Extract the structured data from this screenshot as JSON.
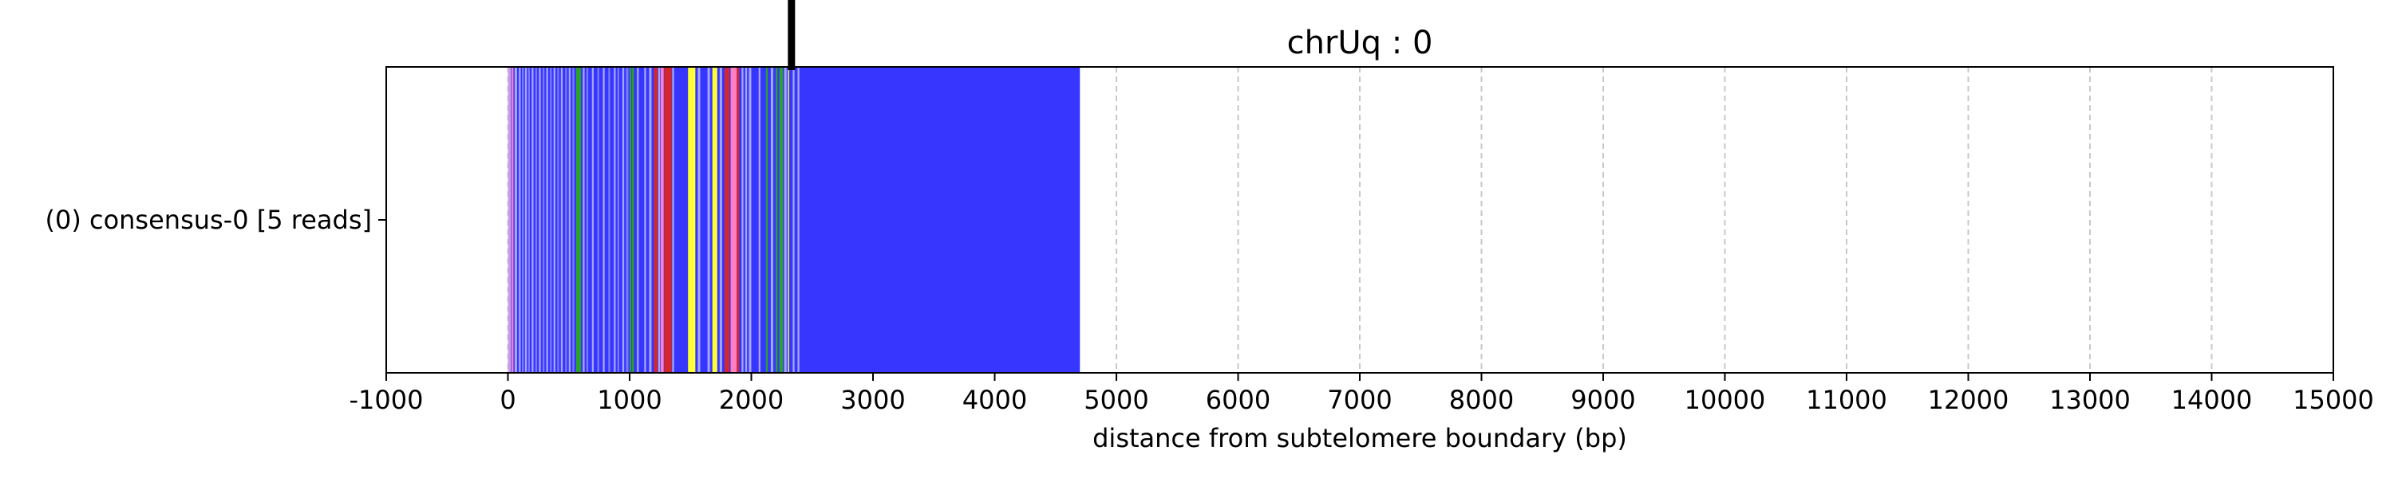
{
  "chart_data": {
    "type": "bar",
    "title": "chrUq : 0",
    "xlabel": "distance from subtelomere boundary (bp)",
    "ylabel": "",
    "xlim": [
      -1000,
      15000
    ],
    "xticks": [
      "-1000",
      "0",
      "1000",
      "2000",
      "3000",
      "4000",
      "5000",
      "6000",
      "7000",
      "8000",
      "9000",
      "10000",
      "11000",
      "12000",
      "13000",
      "14000",
      "15000"
    ],
    "grid": "vertical dashed at major ticks",
    "marker_x": 2330,
    "tracks": [
      {
        "label": "(0) consensus-0 [5 reads]",
        "base_color": "#3636ff",
        "base_start": 0,
        "base_end": 4700,
        "segments": [
          {
            "start": 0,
            "end": 25,
            "color": "#c89ee8"
          },
          {
            "start": 30,
            "end": 45,
            "color": "#ff7fc0"
          },
          {
            "start": 55,
            "end": 75,
            "color": "#a6a6ff"
          },
          {
            "start": 90,
            "end": 105,
            "color": "#a6a6ff"
          },
          {
            "start": 115,
            "end": 130,
            "color": "#7a7aff"
          },
          {
            "start": 140,
            "end": 155,
            "color": "#a6a6ff"
          },
          {
            "start": 165,
            "end": 180,
            "color": "#7a7aff"
          },
          {
            "start": 195,
            "end": 210,
            "color": "#a6a6ff"
          },
          {
            "start": 225,
            "end": 240,
            "color": "#7a7aff"
          },
          {
            "start": 255,
            "end": 270,
            "color": "#a6a6ff"
          },
          {
            "start": 285,
            "end": 300,
            "color": "#7a7aff"
          },
          {
            "start": 315,
            "end": 330,
            "color": "#a6a6ff"
          },
          {
            "start": 345,
            "end": 360,
            "color": "#7a7aff"
          },
          {
            "start": 375,
            "end": 390,
            "color": "#a6a6ff"
          },
          {
            "start": 405,
            "end": 420,
            "color": "#7a7aff"
          },
          {
            "start": 435,
            "end": 450,
            "color": "#a6a6ff"
          },
          {
            "start": 470,
            "end": 485,
            "color": "#7a7aff"
          },
          {
            "start": 500,
            "end": 515,
            "color": "#a6a6ff"
          },
          {
            "start": 530,
            "end": 545,
            "color": "#7a7aff"
          },
          {
            "start": 560,
            "end": 600,
            "color": "#2ca02c"
          },
          {
            "start": 615,
            "end": 630,
            "color": "#a6a6ff"
          },
          {
            "start": 645,
            "end": 660,
            "color": "#7a7aff"
          },
          {
            "start": 690,
            "end": 705,
            "color": "#a6a6ff"
          },
          {
            "start": 735,
            "end": 750,
            "color": "#7a7aff"
          },
          {
            "start": 780,
            "end": 795,
            "color": "#a6a6ff"
          },
          {
            "start": 825,
            "end": 840,
            "color": "#7a7aff"
          },
          {
            "start": 870,
            "end": 885,
            "color": "#a6a6ff"
          },
          {
            "start": 900,
            "end": 915,
            "color": "#7a7aff"
          },
          {
            "start": 940,
            "end": 955,
            "color": "#a6a6ff"
          },
          {
            "start": 970,
            "end": 990,
            "color": "#7a7aff"
          },
          {
            "start": 1000,
            "end": 1015,
            "color": "#2ca02c"
          },
          {
            "start": 1020,
            "end": 1035,
            "color": "#2ca02c"
          },
          {
            "start": 1060,
            "end": 1075,
            "color": "#a6a6ff"
          },
          {
            "start": 1120,
            "end": 1135,
            "color": "#a6a6ff"
          },
          {
            "start": 1160,
            "end": 1180,
            "color": "#a6a6ff"
          },
          {
            "start": 1200,
            "end": 1230,
            "color": "#d62728"
          },
          {
            "start": 1235,
            "end": 1250,
            "color": "#a6a6ff"
          },
          {
            "start": 1255,
            "end": 1280,
            "color": "#ff7fc0"
          },
          {
            "start": 1285,
            "end": 1345,
            "color": "#d62728"
          },
          {
            "start": 1350,
            "end": 1365,
            "color": "#a6a6ff"
          },
          {
            "start": 1480,
            "end": 1540,
            "color": "#ffff33"
          },
          {
            "start": 1560,
            "end": 1580,
            "color": "#a6a6ff"
          },
          {
            "start": 1640,
            "end": 1660,
            "color": "#a6a6ff"
          },
          {
            "start": 1680,
            "end": 1720,
            "color": "#ffff33"
          },
          {
            "start": 1740,
            "end": 1760,
            "color": "#a6a6ff"
          },
          {
            "start": 1780,
            "end": 1820,
            "color": "#d62728"
          },
          {
            "start": 1830,
            "end": 1880,
            "color": "#ff7fc0"
          },
          {
            "start": 1880,
            "end": 1900,
            "color": "#d62728"
          },
          {
            "start": 1920,
            "end": 1935,
            "color": "#a6a6ff"
          },
          {
            "start": 1950,
            "end": 1965,
            "color": "#a6a6ff"
          },
          {
            "start": 1980,
            "end": 2000,
            "color": "#a6a6ff"
          },
          {
            "start": 2060,
            "end": 2075,
            "color": "#a6a6ff"
          },
          {
            "start": 2120,
            "end": 2135,
            "color": "#2ca02c"
          },
          {
            "start": 2160,
            "end": 2180,
            "color": "#a6a6ff"
          },
          {
            "start": 2200,
            "end": 2215,
            "color": "#2ca02c"
          },
          {
            "start": 2230,
            "end": 2260,
            "color": "#2ca02c"
          },
          {
            "start": 2270,
            "end": 2290,
            "color": "#a6a6ff"
          },
          {
            "start": 2300,
            "end": 2310,
            "color": "#ffff33"
          },
          {
            "start": 2340,
            "end": 2355,
            "color": "#a6a6ff"
          },
          {
            "start": 2380,
            "end": 2395,
            "color": "#a6a6ff"
          }
        ]
      }
    ]
  }
}
